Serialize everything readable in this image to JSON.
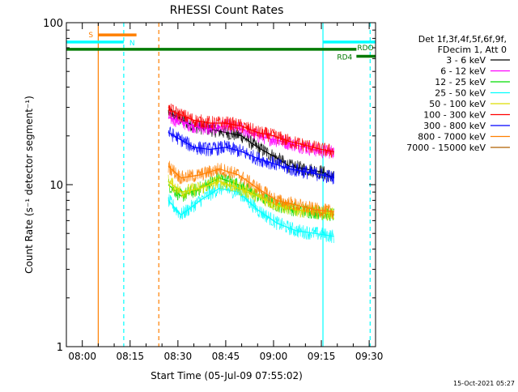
{
  "chart_data": {
    "type": "line",
    "title": "RHESSI Count Rates",
    "xlabel": "Start Time (05-Jul-09 07:55:02)",
    "ylabel": "Count Rate (s⁻¹ detector segment⁻¹)",
    "x_unit": "minutes after 07:55:02",
    "xlim": [
      0,
      97
    ],
    "ylim": [
      1,
      100
    ],
    "yscale": "log",
    "x_ticks": [
      {
        "pos": 5,
        "label": "08:00"
      },
      {
        "pos": 20,
        "label": "08:15"
      },
      {
        "pos": 35,
        "label": "08:30"
      },
      {
        "pos": 50,
        "label": "08:45"
      },
      {
        "pos": 65,
        "label": "09:00"
      },
      {
        "pos": 80,
        "label": "09:15"
      },
      {
        "pos": 95,
        "label": "09:30"
      }
    ],
    "y_ticks": [
      {
        "value": 1,
        "label": "1"
      },
      {
        "value": 10,
        "label": "10"
      },
      {
        "value": 100,
        "label": "100"
      }
    ],
    "legend": {
      "placement": "right",
      "header": [
        "Det 1f,3f,4f,5f,6f,9f,",
        "FDecim 1, Att 0"
      ],
      "entries": [
        {
          "label": "3 - 6 keV",
          "color": "#000000"
        },
        {
          "label": "6 - 12 keV",
          "color": "#ff00ff"
        },
        {
          "label": "12 - 25 keV",
          "color": "#00dd00"
        },
        {
          "label": "25 - 50 keV",
          "color": "#00ffff"
        },
        {
          "label": "50 - 100 keV",
          "color": "#dddd00"
        },
        {
          "label": "100 - 300 keV",
          "color": "#ff0000"
        },
        {
          "label": "300 - 800 keV",
          "color": "#0000ff"
        },
        {
          "label": "800 - 7000 keV",
          "color": "#ff7f00"
        },
        {
          "label": "7000 - 15000 keV",
          "color": "#b06000"
        }
      ]
    },
    "series": [
      {
        "name": "3 - 6 keV",
        "color": "#000000",
        "x": [
          32,
          40,
          45,
          50,
          55,
          60,
          65,
          70,
          75,
          80,
          84
        ],
        "y": [
          28,
          23,
          22,
          21,
          20,
          17,
          15,
          13,
          12.5,
          12,
          11
        ]
      },
      {
        "name": "6 - 12 keV",
        "color": "#ff00ff",
        "x": [
          32,
          40,
          45,
          50,
          55,
          60,
          65,
          70,
          75,
          80,
          84
        ],
        "y": [
          26,
          23,
          22,
          23,
          22,
          20,
          19,
          18,
          17,
          16,
          16
        ]
      },
      {
        "name": "12 - 25 keV",
        "color": "#00dd00",
        "x": [
          32,
          36,
          42,
          48,
          54,
          60,
          66,
          72,
          78,
          84
        ],
        "y": [
          10,
          8.5,
          9.5,
          11,
          10,
          8.5,
          7.5,
          7,
          6.8,
          6.5
        ]
      },
      {
        "name": "25 - 50 keV",
        "color": "#00ffff",
        "x": [
          32,
          36,
          42,
          48,
          54,
          60,
          66,
          72,
          78,
          84
        ],
        "y": [
          8,
          6.5,
          8,
          9.5,
          9,
          7,
          5.8,
          5.2,
          5.0,
          4.8
        ]
      },
      {
        "name": "50 - 100 keV",
        "color": "#dddd00",
        "x": [
          32,
          36,
          42,
          48,
          54,
          60,
          66,
          72,
          78,
          84
        ],
        "y": [
          10.5,
          9,
          9.5,
          10.5,
          9.5,
          8.5,
          7.5,
          7.0,
          6.8,
          6.6
        ]
      },
      {
        "name": "100 - 300 keV",
        "color": "#ff0000",
        "x": [
          32,
          40,
          45,
          50,
          55,
          60,
          65,
          70,
          75,
          80,
          84
        ],
        "y": [
          29,
          25,
          24,
          24,
          23,
          21,
          20,
          18.5,
          17.5,
          16.5,
          16
        ]
      },
      {
        "name": "300 - 800 keV",
        "color": "#0000ff",
        "x": [
          32,
          40,
          45,
          50,
          55,
          60,
          65,
          70,
          75,
          80,
          84
        ],
        "y": [
          21,
          17,
          16.5,
          17,
          16,
          14.5,
          13.5,
          12.5,
          12,
          11.5,
          11
        ]
      },
      {
        "name": "800 - 7000 keV",
        "color": "#ff7f00",
        "x": [
          32,
          36,
          42,
          48,
          54,
          60,
          66,
          72,
          78,
          84
        ],
        "y": [
          13,
          11,
          11.5,
          12.5,
          11.5,
          9.5,
          8,
          7.5,
          7.0,
          6.8
        ]
      },
      {
        "name": "7000 - 15000 keV",
        "color": "#b06000",
        "x": [],
        "y": []
      }
    ],
    "annotations": [
      {
        "type": "vline",
        "x": 10,
        "style": "solid",
        "color": "#ff7f00"
      },
      {
        "type": "vline",
        "x": 18,
        "style": "dashed",
        "color": "#00ffff"
      },
      {
        "type": "vline",
        "x": 29,
        "style": "dashed",
        "color": "#ff7f00"
      },
      {
        "type": "vline",
        "x": 80.5,
        "style": "solid",
        "color": "#00ffff"
      },
      {
        "type": "vline",
        "x": 95.3,
        "style": "dashed",
        "color": "#00ffff"
      },
      {
        "type": "hbar",
        "x_start": 10,
        "x_end": 22,
        "y": 84,
        "color": "#ff7f00",
        "label": "S"
      },
      {
        "type": "hbar",
        "x_start": 0,
        "x_end": 18,
        "y": 76,
        "color": "#00ffff",
        "label": "N"
      },
      {
        "type": "hbar",
        "x_start": 80.5,
        "x_end": 97,
        "y": 76,
        "color": "#00ffff",
        "label": ""
      },
      {
        "type": "hbar",
        "x_start": 0,
        "x_end": 91,
        "y": 68.5,
        "color": "#007a00",
        "label": "RDO"
      },
      {
        "type": "hbar",
        "x_start": 91,
        "x_end": 97,
        "y": 62,
        "color": "#007a00",
        "label": "RD4"
      }
    ],
    "footer_timestamp": "15-Oct-2021 05:27"
  }
}
